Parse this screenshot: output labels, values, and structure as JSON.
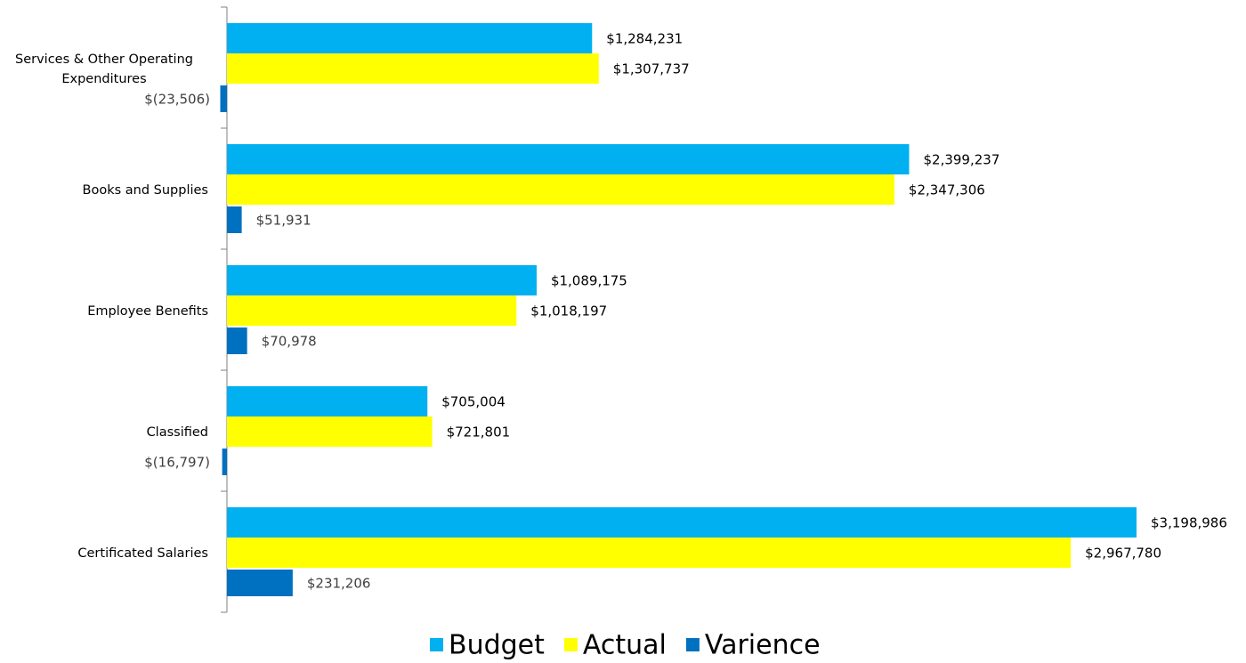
{
  "chart_data": {
    "type": "hbar",
    "categories": [
      "Services & Other Operating Expenditures",
      "Books and Supplies",
      "Employee Benefits",
      "Classified",
      "Certificated Salaries"
    ],
    "series": [
      {
        "name": "Budget",
        "color": "#00b0f0",
        "values": [
          1284231,
          2399237,
          1089175,
          705004,
          3198986
        ],
        "value_labels": [
          "$1,284,231",
          "$2,399,237",
          "$1,089,175",
          "$705,004",
          "$3,198,986"
        ]
      },
      {
        "name": "Actual",
        "color": "#ffff00",
        "values": [
          1307737,
          2347306,
          1018197,
          721801,
          2967780
        ],
        "value_labels": [
          "$1,307,737",
          "$2,347,306",
          "$1,018,197",
          "$721,801",
          "$2,967,780"
        ]
      },
      {
        "name": "Varience",
        "color": "#0070c0",
        "values": [
          -23506,
          51931,
          70978,
          -16797,
          231206
        ],
        "value_labels": [
          "$(23,506)",
          "$51,931",
          "$70,978",
          "$(16,797)",
          "$231,206"
        ]
      }
    ],
    "legend": "bottom"
  }
}
